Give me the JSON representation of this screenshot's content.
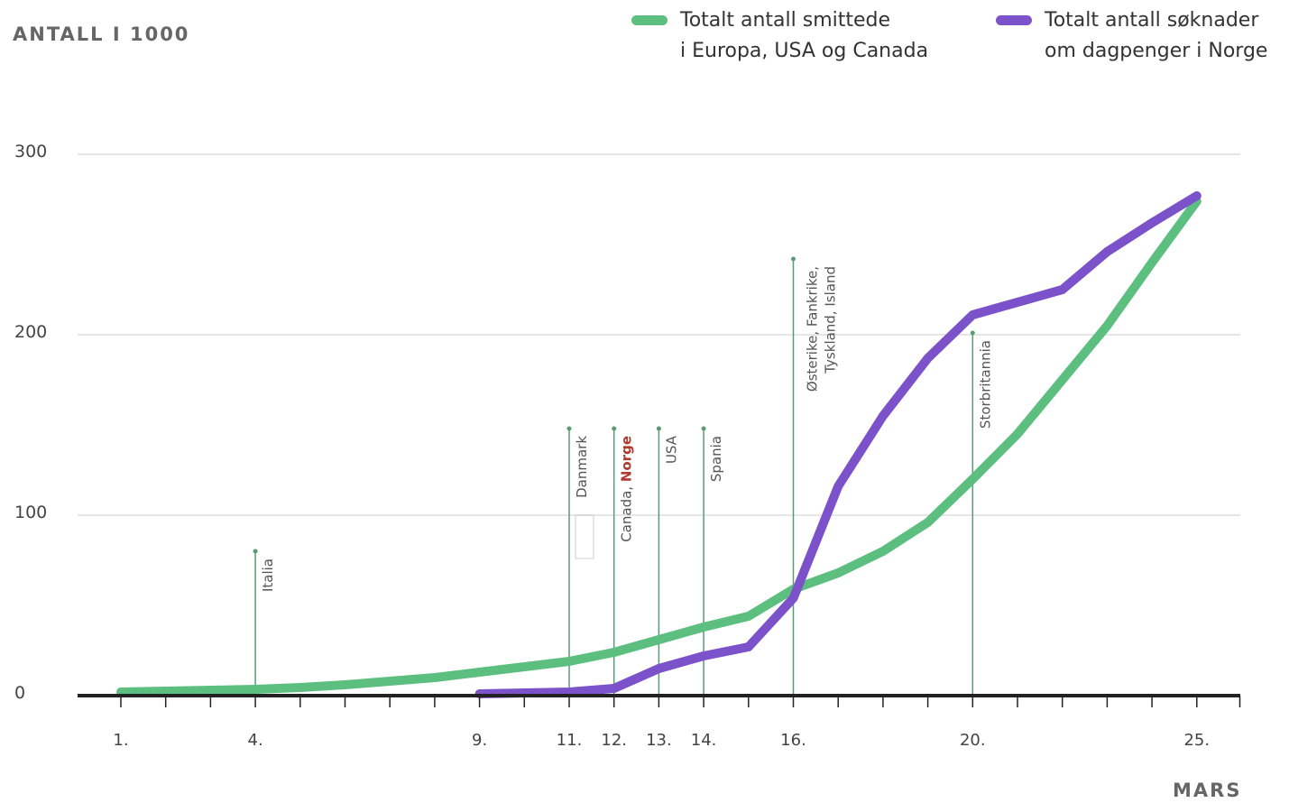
{
  "y_axis_title": "ANTALL I 1000",
  "x_axis_title": "MARS",
  "legend": {
    "green_line1": "Totalt antall smittede",
    "green_line2": "i Europa, USA og Canada",
    "purple_line1": "Totalt antall søknader",
    "purple_line2": "om dagpenger i Norge"
  },
  "colors": {
    "green": "#5cbf80",
    "purple": "#7b52c9",
    "annotation_line": "#5a9c72",
    "norge_red": "#b03a2e",
    "axis": "#222222",
    "grid": "#e6e6e6"
  },
  "chart_data": {
    "type": "line",
    "title": "",
    "xlabel": "MARS",
    "ylabel": "ANTALL I 1000",
    "xlim": [
      1,
      25
    ],
    "ylim": [
      0,
      300
    ],
    "y_ticks": [
      0,
      100,
      200,
      300
    ],
    "x_ticks": [
      1,
      4,
      9,
      11,
      12,
      13,
      14,
      16,
      20,
      25
    ],
    "x_tick_labels": [
      "1.",
      "4.",
      "9.",
      "11.",
      "12.",
      "13.",
      "14.",
      "16.",
      "20.",
      "25."
    ],
    "grid": true,
    "legend_position": "top-right",
    "series": [
      {
        "name": "Totalt antall smittede i Europa, USA og Canada",
        "color": "#5cbf80",
        "x": [
          1,
          2,
          3,
          4,
          5,
          6,
          7,
          8,
          9,
          10,
          11,
          12,
          13,
          14,
          15,
          16,
          17,
          18,
          19,
          20,
          21,
          22,
          23,
          24,
          25
        ],
        "y": [
          2,
          2.5,
          3,
          3.5,
          4.5,
          6,
          8,
          10,
          13,
          16,
          19,
          24,
          31,
          38,
          44,
          59,
          68,
          80,
          96,
          120,
          145,
          175,
          205,
          240,
          274
        ]
      },
      {
        "name": "Totalt antall søknader om dagpenger i Norge",
        "color": "#7b52c9",
        "x": [
          9,
          10,
          11,
          12,
          13,
          14,
          15,
          16,
          17,
          18,
          19,
          20,
          21,
          22,
          23,
          24,
          25
        ],
        "y": [
          1,
          1.5,
          2,
          4,
          15,
          22,
          27,
          54,
          116,
          155,
          187,
          211,
          218,
          225,
          246,
          262,
          277
        ]
      }
    ],
    "annotations": [
      {
        "x": 4,
        "top": 80,
        "label": "Italia"
      },
      {
        "x": 11,
        "top": 148,
        "label": "Danmark"
      },
      {
        "x": 12,
        "top": 148,
        "label": "Canada,",
        "highlight": "Norge"
      },
      {
        "x": 13,
        "top": 148,
        "label": "USA"
      },
      {
        "x": 14,
        "top": 148,
        "label": "Spania"
      },
      {
        "x": 16,
        "top": 242,
        "label": "Østerike, Fankrike,",
        "label2": "Tyskland, Island"
      },
      {
        "x": 20,
        "top": 201,
        "label": "Storbritannia"
      }
    ]
  }
}
